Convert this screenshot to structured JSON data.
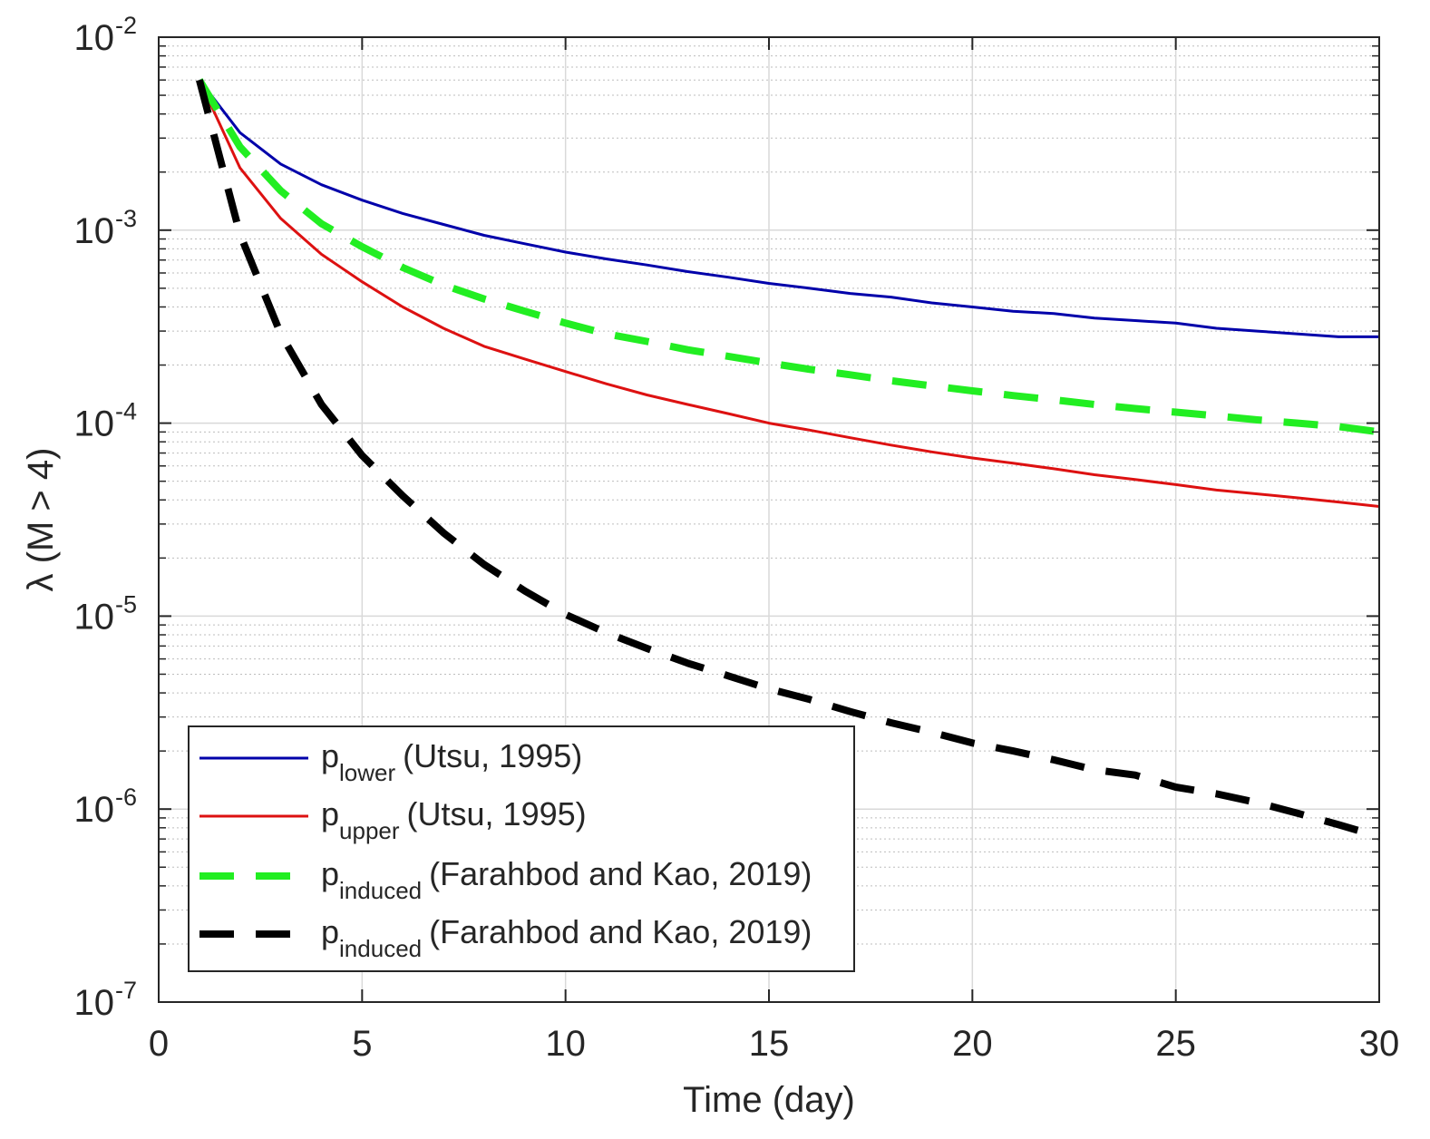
{
  "chart_data": {
    "type": "line",
    "title": "",
    "xlabel": "Time (day)",
    "ylabel": "λ (M > 4)",
    "xlim": [
      0,
      30
    ],
    "ylim": [
      1e-07,
      0.01
    ],
    "yscale": "log",
    "grid": true,
    "minor_grid": true,
    "legend_position": "bottom-left",
    "x_ticks": [
      "0",
      "5",
      "10",
      "15",
      "20",
      "25",
      "30"
    ],
    "y_ticks": [
      {
        "base": "10",
        "exp": "-7"
      },
      {
        "base": "10",
        "exp": "-6"
      },
      {
        "base": "10",
        "exp": "-5"
      },
      {
        "base": "10",
        "exp": "-4"
      },
      {
        "base": "10",
        "exp": "-3"
      },
      {
        "base": "10",
        "exp": "-2"
      }
    ],
    "series": [
      {
        "name": "p_lower (Utsu, 1995)",
        "legend_main": "p",
        "legend_sub": "lower",
        "legend_suffix": "(Utsu, 1995)",
        "color": "#0000aa",
        "style": "solid",
        "x": [
          1,
          2,
          3,
          4,
          5,
          6,
          7,
          8,
          9,
          10,
          11,
          12,
          13,
          14,
          15,
          16,
          17,
          18,
          19,
          20,
          21,
          22,
          23,
          24,
          25,
          26,
          27,
          28,
          29,
          30
        ],
        "y": [
          0.006,
          0.0032,
          0.0022,
          0.00172,
          0.00143,
          0.00122,
          0.00107,
          0.00094,
          0.00085,
          0.00077,
          0.00071,
          0.00066,
          0.00061,
          0.00057,
          0.00053,
          0.0005,
          0.00047,
          0.00045,
          0.00042,
          0.0004,
          0.00038,
          0.00037,
          0.00035,
          0.00034,
          0.00033,
          0.00031,
          0.0003,
          0.00029,
          0.00028,
          0.00028
        ]
      },
      {
        "name": "p_upper (Utsu, 1995)",
        "legend_main": "p",
        "legend_sub": "upper",
        "legend_suffix": "(Utsu, 1995)",
        "color": "#dd1111",
        "style": "solid",
        "x": [
          1,
          2,
          3,
          4,
          5,
          6,
          7,
          8,
          9,
          10,
          11,
          12,
          13,
          14,
          15,
          16,
          17,
          18,
          19,
          20,
          21,
          22,
          23,
          24,
          25,
          26,
          27,
          28,
          29,
          30
        ],
        "y": [
          0.006,
          0.0021,
          0.00115,
          0.00075,
          0.00054,
          0.0004,
          0.00031,
          0.00025,
          0.000215,
          0.000185,
          0.00016,
          0.00014,
          0.000125,
          0.000112,
          0.0001,
          9.2e-05,
          8.4e-05,
          7.7e-05,
          7.1e-05,
          6.6e-05,
          6.2e-05,
          5.8e-05,
          5.4e-05,
          5.1e-05,
          4.8e-05,
          4.5e-05,
          4.3e-05,
          4.1e-05,
          3.9e-05,
          3.7e-05
        ]
      },
      {
        "name": "p_induced (Farahbod and Kao, 2019)",
        "legend_main": "p",
        "legend_sub": "induced",
        "legend_suffix": "(Farahbod and Kao, 2019)",
        "color": "#22ee22",
        "style": "dashed",
        "x": [
          1,
          2,
          3,
          4,
          5,
          6,
          7,
          8,
          9,
          10,
          11,
          12,
          13,
          14,
          15,
          16,
          17,
          18,
          19,
          20,
          21,
          22,
          23,
          24,
          25,
          26,
          27,
          28,
          29,
          30
        ],
        "y": [
          0.006,
          0.0027,
          0.0016,
          0.00108,
          0.00082,
          0.00064,
          0.00052,
          0.00044,
          0.00038,
          0.00033,
          0.00029,
          0.000265,
          0.00024,
          0.000222,
          0.000205,
          0.00019,
          0.000178,
          0.000166,
          0.000156,
          0.000147,
          0.000139,
          0.000132,
          0.000125,
          0.000119,
          0.000114,
          0.000109,
          0.000104,
          0.0001,
          9.6e-05,
          9e-05
        ]
      },
      {
        "name": "p_induced (Farahbod and Kao, 2019)",
        "legend_main": "p",
        "legend_sub": "induced",
        "legend_suffix": "(Farahbod and Kao, 2019)",
        "color": "#000000",
        "style": "dashed",
        "x": [
          1,
          2,
          3,
          4,
          5,
          6,
          7,
          8,
          9,
          10,
          11,
          12,
          13,
          14,
          15,
          16,
          17,
          18,
          19,
          20,
          21,
          22,
          23,
          24,
          25,
          26,
          27,
          28,
          29,
          30
        ],
        "y": [
          0.006,
          0.00095,
          0.00029,
          0.000125,
          6.8e-05,
          4.2e-05,
          2.7e-05,
          1.85e-05,
          1.35e-05,
          1.02e-05,
          8.2e-06,
          6.8e-06,
          5.7e-06,
          4.9e-06,
          4.2e-06,
          3.7e-06,
          3.2e-06,
          2.8e-06,
          2.5e-06,
          2.2e-06,
          2e-06,
          1.8e-06,
          1.6e-06,
          1.5e-06,
          1.3e-06,
          1.2e-06,
          1.08e-06,
          9.5e-07,
          8.3e-07,
          7.2e-07
        ]
      }
    ]
  }
}
